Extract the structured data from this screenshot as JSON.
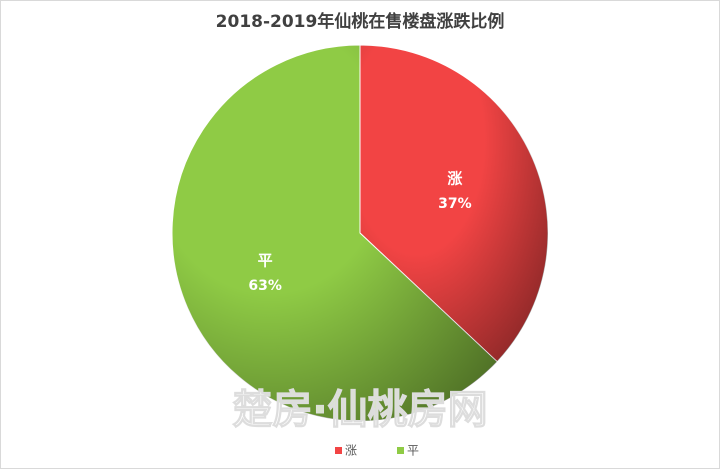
{
  "chart_data": {
    "type": "pie",
    "title": "2018-2019年仙桃在售楼盘涨跌比例",
    "categories": [
      "涨",
      "平"
    ],
    "values": [
      37,
      63
    ],
    "value_labels": [
      "37%",
      "63%"
    ],
    "colors": [
      "#f24444",
      "#8fcb45"
    ],
    "legend": "bottom",
    "watermark": "楚房·仙桃房网"
  }
}
